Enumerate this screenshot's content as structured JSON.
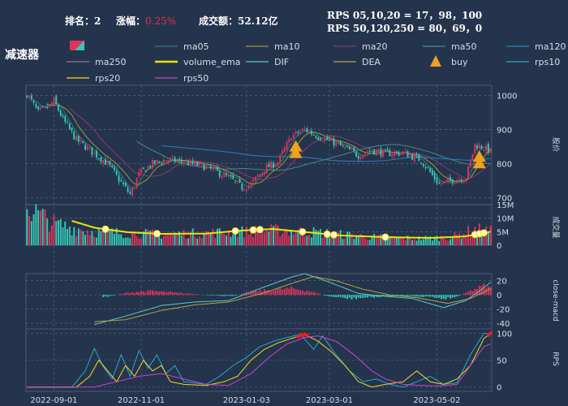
{
  "header": {
    "rank_label": "排名：",
    "rank_value": "2",
    "change_label": "涨幅：",
    "change_value": "0.25%",
    "turnover_label": "成交额：",
    "turnover_value": "52.12亿",
    "rps_line1": "RPS 05,10,20 = 17，98，100",
    "rps_line2": "RPS 50,120,250 = 80，69，0"
  },
  "colors": {
    "background": "#24344d",
    "up": "#e0325a",
    "down": "#33c9b4",
    "volume_ema": "#f7e000",
    "rps20": "#f7d71a",
    "rps50": "#cc44cc",
    "rps10": "#2aa6c9",
    "dif": "#5fc7c2",
    "dea": "#b7a24a",
    "buy": "#f0a020"
  },
  "chart_data": {
    "type": "candlestick",
    "title": "减速器",
    "legend": [
      {
        "name": "",
        "color": "#e0325a",
        "kind": "candle"
      },
      {
        "name": "ma05",
        "color": "#2e7d78"
      },
      {
        "name": "ma10",
        "color": "#9a9a3c"
      },
      {
        "name": "ma20",
        "color": "#8a3a70"
      },
      {
        "name": "ma50",
        "color": "#4a8a8a"
      },
      {
        "name": "ma120",
        "color": "#2f7fb8"
      },
      {
        "name": "ma250",
        "color": "#8a7a90"
      },
      {
        "name": "volume_ema",
        "color": "#f7e000"
      },
      {
        "name": "DIF",
        "color": "#5fc7c2"
      },
      {
        "name": "DEA",
        "color": "#b7a24a"
      },
      {
        "name": "buy",
        "color": "#f0a020",
        "kind": "marker"
      },
      {
        "name": "rps10",
        "color": "#2aa6c9"
      },
      {
        "name": "rps20",
        "color": "#f7d71a"
      },
      {
        "name": "rps50",
        "color": "#cc44cc"
      }
    ],
    "x_ticks": [
      "2022-09-01",
      "2022-11-01",
      "2023-01-03",
      "2023-03-01",
      "2023-05-02"
    ],
    "x_tick_index": [
      12,
      51,
      98,
      135,
      183
    ],
    "n_bars": 208,
    "panels": {
      "price": {
        "ylabel": "股价",
        "ylim": [
          680,
          1030
        ],
        "ticks": [
          700,
          800,
          900,
          1000
        ]
      },
      "volume": {
        "ylabel": "成交量",
        "ylim": [
          0,
          15
        ],
        "ticks": [
          0,
          5,
          10,
          15
        ],
        "tick_labels": [
          "0",
          "5M",
          "10M",
          "15M"
        ]
      },
      "macd": {
        "ylabel": "close-macd",
        "ylim": [
          -48,
          30
        ],
        "ticks": [
          -40,
          -20,
          0,
          20
        ]
      },
      "rps": {
        "ylabel": "RPS",
        "ylim": [
          -8,
          108
        ],
        "ticks": [
          0,
          50,
          100
        ]
      }
    },
    "price_anchors": [
      [
        0,
        1005
      ],
      [
        5,
        950
      ],
      [
        10,
        970
      ],
      [
        12,
        985
      ],
      [
        16,
        930
      ],
      [
        22,
        870
      ],
      [
        28,
        840
      ],
      [
        36,
        800
      ],
      [
        42,
        745
      ],
      [
        46,
        710
      ],
      [
        50,
        770
      ],
      [
        56,
        800
      ],
      [
        62,
        812
      ],
      [
        70,
        805
      ],
      [
        80,
        790
      ],
      [
        90,
        760
      ],
      [
        96,
        730
      ],
      [
        100,
        740
      ],
      [
        106,
        785
      ],
      [
        112,
        805
      ],
      [
        118,
        880
      ],
      [
        124,
        900
      ],
      [
        130,
        880
      ],
      [
        136,
        865
      ],
      [
        142,
        845
      ],
      [
        148,
        825
      ],
      [
        154,
        840
      ],
      [
        160,
        830
      ],
      [
        168,
        832
      ],
      [
        176,
        810
      ],
      [
        184,
        740
      ],
      [
        190,
        752
      ],
      [
        196,
        760
      ],
      [
        200,
        855
      ],
      [
        204,
        848
      ],
      [
        207,
        835
      ]
    ],
    "volume_anchors": [
      [
        0,
        14
      ],
      [
        6,
        11
      ],
      [
        12,
        8
      ],
      [
        20,
        6.5
      ],
      [
        30,
        5
      ],
      [
        45,
        4.5
      ],
      [
        60,
        4
      ],
      [
        80,
        4.5
      ],
      [
        95,
        5
      ],
      [
        110,
        5.5
      ],
      [
        125,
        5
      ],
      [
        140,
        4
      ],
      [
        155,
        3
      ],
      [
        175,
        2.5
      ],
      [
        190,
        3
      ],
      [
        200,
        6
      ],
      [
        207,
        5
      ]
    ],
    "volume_ema_anchors": [
      [
        20,
        9
      ],
      [
        30,
        6.5
      ],
      [
        45,
        4.8
      ],
      [
        60,
        4.2
      ],
      [
        80,
        4.3
      ],
      [
        95,
        5.4
      ],
      [
        110,
        6
      ],
      [
        125,
        4.8
      ],
      [
        140,
        3.6
      ],
      [
        160,
        3
      ],
      [
        180,
        2.7
      ],
      [
        195,
        3.2
      ],
      [
        207,
        5
      ]
    ],
    "volume_marker_idx": [
      35,
      58,
      93,
      101,
      104,
      123,
      134,
      137,
      160,
      200,
      202,
      204
    ],
    "dif_anchors": [
      [
        30,
        -42
      ],
      [
        44,
        -30
      ],
      [
        60,
        -15
      ],
      [
        75,
        -10
      ],
      [
        90,
        -8
      ],
      [
        105,
        10
      ],
      [
        118,
        25
      ],
      [
        124,
        30
      ],
      [
        135,
        18
      ],
      [
        148,
        2
      ],
      [
        160,
        -2
      ],
      [
        172,
        -5
      ],
      [
        186,
        -18
      ],
      [
        196,
        -8
      ],
      [
        204,
        10
      ],
      [
        207,
        18
      ]
    ],
    "dea_anchors": [
      [
        30,
        -38
      ],
      [
        44,
        -35
      ],
      [
        60,
        -22
      ],
      [
        75,
        -14
      ],
      [
        90,
        -10
      ],
      [
        105,
        2
      ],
      [
        118,
        16
      ],
      [
        128,
        26
      ],
      [
        138,
        20
      ],
      [
        150,
        8
      ],
      [
        162,
        0
      ],
      [
        174,
        -4
      ],
      [
        188,
        -12
      ],
      [
        198,
        -5
      ],
      [
        204,
        4
      ],
      [
        207,
        9
      ]
    ],
    "macd_hist_anchors": [
      [
        34,
        -4
      ],
      [
        46,
        4
      ],
      [
        56,
        6
      ],
      [
        64,
        4
      ],
      [
        72,
        2
      ],
      [
        82,
        -1
      ],
      [
        92,
        -2
      ],
      [
        100,
        5
      ],
      [
        110,
        8
      ],
      [
        118,
        10
      ],
      [
        126,
        6
      ],
      [
        134,
        -2
      ],
      [
        144,
        -6
      ],
      [
        152,
        -4
      ],
      [
        160,
        -3
      ],
      [
        170,
        -2
      ],
      [
        180,
        -3
      ],
      [
        186,
        -6
      ],
      [
        192,
        -3
      ],
      [
        198,
        6
      ],
      [
        204,
        14
      ],
      [
        207,
        10
      ]
    ],
    "rps10_anchors": [
      [
        0,
        0
      ],
      [
        20,
        0
      ],
      [
        26,
        30
      ],
      [
        30,
        72
      ],
      [
        34,
        38
      ],
      [
        38,
        15
      ],
      [
        42,
        60
      ],
      [
        46,
        20
      ],
      [
        50,
        68
      ],
      [
        54,
        35
      ],
      [
        58,
        60
      ],
      [
        62,
        25
      ],
      [
        66,
        40
      ],
      [
        70,
        10
      ],
      [
        80,
        5
      ],
      [
        86,
        20
      ],
      [
        92,
        40
      ],
      [
        98,
        55
      ],
      [
        104,
        75
      ],
      [
        110,
        85
      ],
      [
        116,
        92
      ],
      [
        122,
        98
      ],
      [
        128,
        70
      ],
      [
        132,
        95
      ],
      [
        138,
        60
      ],
      [
        144,
        30
      ],
      [
        150,
        10
      ],
      [
        156,
        15
      ],
      [
        162,
        5
      ],
      [
        168,
        0
      ],
      [
        174,
        10
      ],
      [
        180,
        20
      ],
      [
        186,
        5
      ],
      [
        192,
        8
      ],
      [
        198,
        60
      ],
      [
        204,
        100
      ],
      [
        207,
        98
      ]
    ],
    "rps20_anchors": [
      [
        0,
        0
      ],
      [
        22,
        0
      ],
      [
        28,
        20
      ],
      [
        32,
        50
      ],
      [
        36,
        30
      ],
      [
        40,
        10
      ],
      [
        44,
        40
      ],
      [
        48,
        20
      ],
      [
        52,
        50
      ],
      [
        56,
        30
      ],
      [
        60,
        40
      ],
      [
        64,
        10
      ],
      [
        70,
        5
      ],
      [
        80,
        3
      ],
      [
        88,
        10
      ],
      [
        94,
        20
      ],
      [
        100,
        50
      ],
      [
        106,
        70
      ],
      [
        112,
        82
      ],
      [
        118,
        90
      ],
      [
        124,
        98
      ],
      [
        130,
        85
      ],
      [
        136,
        65
      ],
      [
        142,
        40
      ],
      [
        148,
        10
      ],
      [
        154,
        0
      ],
      [
        160,
        5
      ],
      [
        168,
        10
      ],
      [
        174,
        30
      ],
      [
        180,
        10
      ],
      [
        186,
        5
      ],
      [
        192,
        15
      ],
      [
        198,
        40
      ],
      [
        204,
        90
      ],
      [
        207,
        100
      ]
    ],
    "rps50_anchors": [
      [
        0,
        0
      ],
      [
        30,
        0
      ],
      [
        40,
        10
      ],
      [
        50,
        20
      ],
      [
        60,
        25
      ],
      [
        70,
        15
      ],
      [
        80,
        5
      ],
      [
        90,
        3
      ],
      [
        100,
        25
      ],
      [
        108,
        55
      ],
      [
        116,
        80
      ],
      [
        124,
        92
      ],
      [
        130,
        95
      ],
      [
        138,
        85
      ],
      [
        146,
        60
      ],
      [
        154,
        30
      ],
      [
        160,
        15
      ],
      [
        168,
        5
      ],
      [
        176,
        3
      ],
      [
        184,
        2
      ],
      [
        192,
        5
      ],
      [
        198,
        40
      ],
      [
        204,
        75
      ],
      [
        207,
        80
      ]
    ],
    "buy_signals": [
      {
        "idx": 120,
        "price": 850
      },
      {
        "idx": 202,
        "price": 820
      }
    ]
  }
}
